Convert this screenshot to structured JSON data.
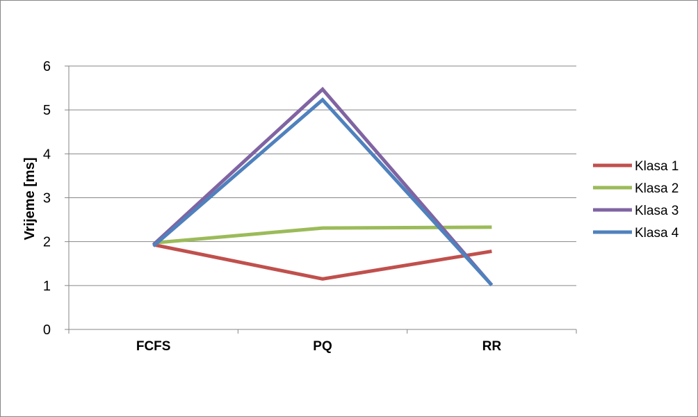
{
  "chart_data": {
    "type": "line",
    "categories": [
      "FCFS",
      "PQ",
      "RR"
    ],
    "series": [
      {
        "name": "Klasa 1",
        "values": [
          1.93,
          1.15,
          1.78
        ],
        "color": "#C0504D"
      },
      {
        "name": "Klasa 2",
        "values": [
          1.97,
          2.31,
          2.33
        ],
        "color": "#9BBB59"
      },
      {
        "name": "Klasa 3",
        "values": [
          1.93,
          5.47,
          1.01
        ],
        "color": "#8064A2"
      },
      {
        "name": "Klasa 4",
        "values": [
          1.9,
          5.23,
          1.01
        ],
        "color": "#4F81BD"
      }
    ],
    "ylabel": "Vrijeme [ms]",
    "xlabel": "",
    "ylim": [
      0,
      6
    ],
    "yticks": [
      "0",
      "1",
      "2",
      "3",
      "4",
      "5",
      "6"
    ],
    "grid": true,
    "legend": "right",
    "gridline_color": "#868686"
  }
}
